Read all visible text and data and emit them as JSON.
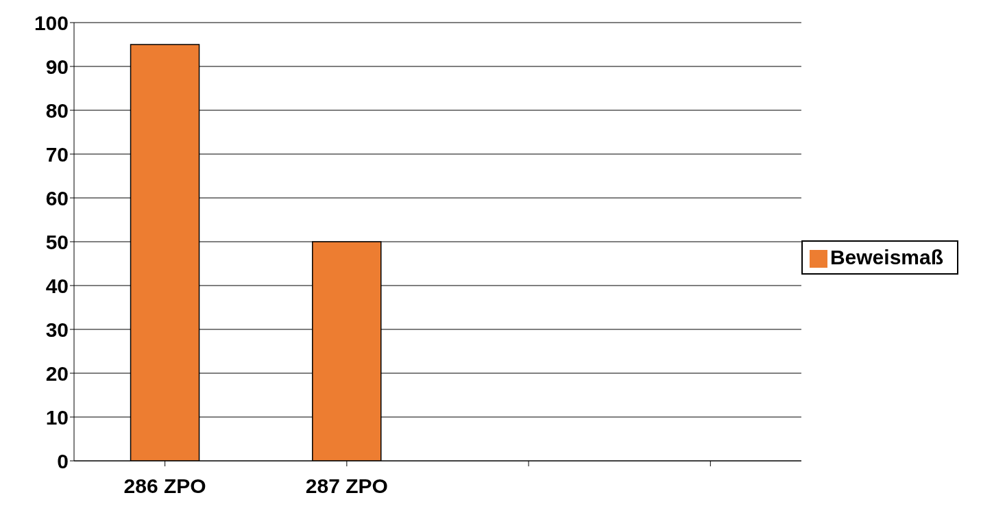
{
  "chart_data": {
    "type": "bar",
    "categories": [
      "286 ZPO",
      "287 ZPO",
      null,
      null
    ],
    "series": [
      {
        "name": "Beweismaß",
        "color": "#ed7d31",
        "values": [
          95,
          50,
          null,
          null
        ]
      }
    ],
    "ylim": [
      0,
      100
    ],
    "yticks": [
      0,
      10,
      20,
      30,
      40,
      50,
      60,
      70,
      80,
      90,
      100
    ],
    "grid": "y",
    "legend": "right"
  }
}
